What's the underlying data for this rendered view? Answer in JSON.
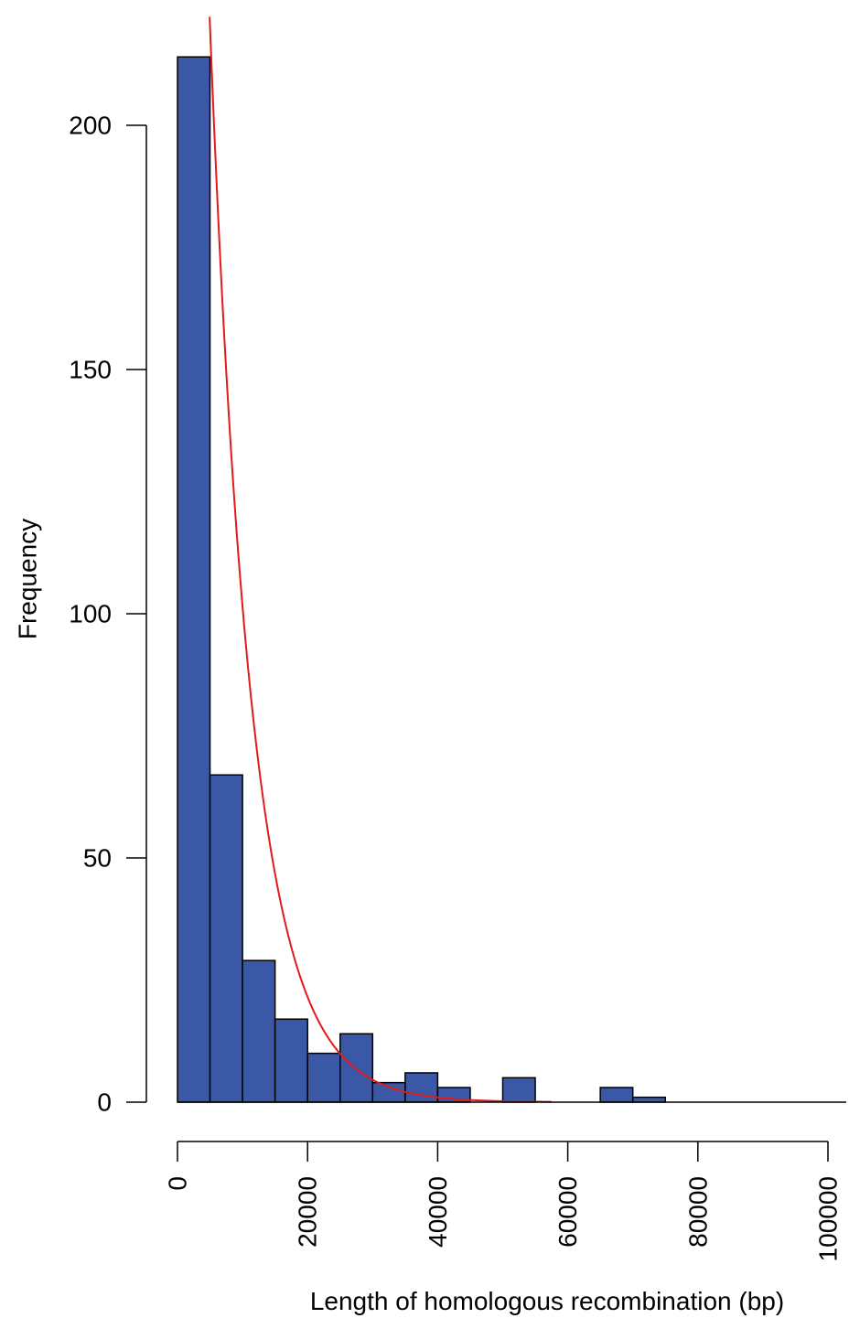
{
  "chart_data": {
    "type": "bar",
    "title": "",
    "xlabel": "Length of homologous recombination (bp)",
    "ylabel": "Frequency",
    "bin_width": 5000,
    "bins": [
      {
        "x0": 0,
        "x1": 5000,
        "count": 214
      },
      {
        "x0": 5000,
        "x1": 10000,
        "count": 67
      },
      {
        "x0": 10000,
        "x1": 15000,
        "count": 29
      },
      {
        "x0": 15000,
        "x1": 20000,
        "count": 17
      },
      {
        "x0": 20000,
        "x1": 25000,
        "count": 10
      },
      {
        "x0": 25000,
        "x1": 30000,
        "count": 14
      },
      {
        "x0": 30000,
        "x1": 35000,
        "count": 4
      },
      {
        "x0": 35000,
        "x1": 40000,
        "count": 6
      },
      {
        "x0": 40000,
        "x1": 45000,
        "count": 3
      },
      {
        "x0": 45000,
        "x1": 50000,
        "count": 0
      },
      {
        "x0": 50000,
        "x1": 55000,
        "count": 5
      },
      {
        "x0": 55000,
        "x1": 60000,
        "count": 0
      },
      {
        "x0": 60000,
        "x1": 65000,
        "count": 0
      },
      {
        "x0": 65000,
        "x1": 70000,
        "count": 3
      },
      {
        "x0": 70000,
        "x1": 75000,
        "count": 1
      },
      {
        "x0": 75000,
        "x1": 80000,
        "count": 0
      },
      {
        "x0": 80000,
        "x1": 85000,
        "count": 0
      },
      {
        "x0": 85000,
        "x1": 90000,
        "count": 0
      },
      {
        "x0": 90000,
        "x1": 95000,
        "count": 0
      },
      {
        "x0": 95000,
        "x1": 100000,
        "count": 0
      }
    ],
    "fit_curve": {
      "kind": "exponential",
      "amplitude": 478,
      "rate": 0.000155,
      "x_range": [
        4500,
        57500
      ],
      "color": "#e31a1c"
    },
    "xlim": [
      0,
      100000
    ],
    "ylim": [
      0,
      200
    ],
    "x_ticks": [
      "0",
      "20000",
      "40000",
      "60000",
      "80000",
      "100000"
    ],
    "x_tick_values": [
      0,
      20000,
      40000,
      60000,
      80000,
      100000
    ],
    "y_ticks": [
      "0",
      "50",
      "100",
      "150",
      "200"
    ],
    "y_tick_values": [
      0,
      50,
      100,
      150,
      200
    ],
    "bar_color": "#3a58a6",
    "bar_edge_color": "#000000",
    "grid": false,
    "legend": "none"
  }
}
